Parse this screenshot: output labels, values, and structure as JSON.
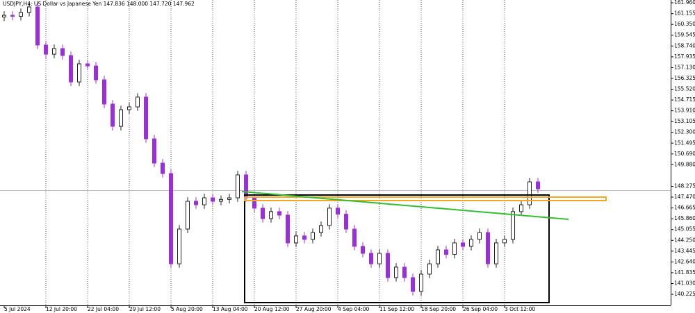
{
  "chart_data": {
    "type": "candlestick",
    "title": "USDJPY,H4:  US Dollar vs Japanese Yen  147.836 148.000 147.720 147.962",
    "categories": [
      "5 Jul 2024",
      null,
      null,
      null,
      null,
      "12 Jul 20:00",
      null,
      null,
      null,
      null,
      "22 Jul 04:00",
      null,
      null,
      null,
      null,
      "29 Jul 12:00",
      null,
      null,
      null,
      null,
      "5 Aug 20:00",
      null,
      null,
      null,
      null,
      "13 Aug 04:00",
      null,
      null,
      null,
      null,
      "20 Aug 12:00",
      null,
      null,
      null,
      null,
      "27 Aug 20:00",
      null,
      null,
      null,
      null,
      "4 Sep 04:00",
      null,
      null,
      null,
      null,
      "11 Sep 12:00",
      null,
      null,
      null,
      null,
      "18 Sep 20:00",
      null,
      null,
      null,
      null,
      "26 Sep 04:00",
      null,
      null,
      null,
      null,
      "3 Oct 12:00",
      null,
      null,
      null,
      null
    ],
    "open": [
      160.9,
      161.03,
      160.95,
      161.24,
      161.65,
      158.81,
      158.13,
      158.55,
      158.03,
      156.06,
      157.41,
      157.25,
      156.22,
      154.41,
      152.75,
      153.99,
      154.2,
      154.93,
      151.82,
      150.01,
      149.23,
      142.5,
      145.09,
      147.16,
      146.9,
      147.42,
      147.16,
      147.3,
      147.42,
      149.13,
      147.42,
      146.65,
      145.87,
      146.39,
      146.13,
      144.06,
      144.58,
      144.32,
      144.83,
      145.35,
      146.65,
      146.2,
      145.09,
      143.8,
      143.28,
      142.5,
      143.28,
      141.47,
      142.25,
      141.47,
      140.44,
      141.73,
      142.5,
      143.54,
      143.2,
      144.06,
      143.8,
      144.32,
      144.83,
      142.5,
      144.06,
      144.32,
      146.39,
      146.9,
      148.61
    ],
    "high": [
      161.33,
      161.33,
      161.54,
      161.95,
      161.95,
      159.11,
      158.85,
      158.85,
      158.33,
      157.71,
      157.71,
      157.55,
      156.52,
      154.71,
      154.29,
      154.5,
      155.23,
      155.23,
      152.12,
      150.31,
      149.53,
      145.39,
      147.46,
      147.46,
      147.72,
      147.72,
      147.6,
      147.72,
      149.43,
      149.43,
      147.72,
      146.95,
      146.69,
      146.69,
      146.43,
      144.88,
      144.88,
      145.13,
      145.65,
      146.95,
      146.95,
      146.5,
      145.39,
      144.1,
      143.58,
      143.58,
      143.58,
      142.55,
      142.55,
      141.77,
      142.03,
      142.8,
      143.84,
      143.84,
      144.36,
      144.36,
      144.62,
      145.13,
      145.13,
      144.36,
      144.62,
      146.69,
      147.2,
      148.91,
      148.91
    ],
    "low": [
      160.6,
      160.65,
      160.65,
      160.94,
      158.51,
      157.83,
      157.83,
      157.73,
      155.76,
      155.76,
      156.95,
      155.92,
      154.11,
      152.45,
      152.45,
      153.69,
      153.9,
      151.52,
      149.71,
      148.93,
      142.2,
      142.2,
      144.79,
      146.6,
      146.6,
      146.86,
      146.86,
      147.0,
      147.12,
      147.12,
      146.35,
      145.57,
      145.57,
      145.83,
      143.76,
      143.76,
      144.02,
      144.02,
      144.53,
      145.05,
      145.9,
      144.79,
      143.5,
      142.98,
      142.2,
      142.2,
      141.17,
      141.17,
      141.17,
      140.14,
      140.14,
      141.43,
      142.2,
      142.9,
      142.9,
      143.5,
      143.5,
      144.02,
      142.2,
      142.2,
      143.76,
      144.02,
      146.09,
      146.6,
      147.79
    ],
    "close": [
      161.03,
      160.95,
      161.24,
      161.65,
      158.81,
      158.13,
      158.55,
      158.03,
      156.06,
      157.41,
      157.25,
      156.22,
      154.41,
      152.75,
      153.99,
      154.2,
      154.93,
      151.82,
      150.01,
      149.23,
      142.5,
      145.09,
      147.16,
      146.9,
      147.42,
      147.16,
      147.3,
      147.42,
      149.13,
      147.42,
      146.65,
      145.87,
      146.39,
      146.13,
      144.06,
      144.58,
      144.32,
      144.83,
      145.35,
      146.65,
      146.2,
      145.09,
      143.8,
      143.28,
      142.5,
      143.28,
      141.47,
      142.25,
      141.47,
      140.44,
      141.73,
      142.5,
      143.54,
      143.2,
      144.06,
      143.8,
      144.32,
      144.83,
      142.5,
      144.06,
      144.32,
      146.39,
      146.9,
      148.61,
      148.09
    ],
    "up_color": "#222222",
    "down_color": "#9b30d9",
    "ylim": [
      139.4,
      162.17
    ],
    "yticks": [
      {
        "value": 161.96,
        "label": "161.960"
      },
      161.155,
      {
        "value": 160.35,
        "label": "160.350"
      },
      159.545,
      {
        "value": 158.74,
        "label": "158.740"
      },
      157.935,
      {
        "value": 157.13,
        "label": "157.130"
      },
      156.325,
      {
        "value": 155.52,
        "label": "155.520"
      },
      154.715,
      {
        "value": 153.91,
        "label": "153.910"
      },
      153.105,
      {
        "value": 152.3,
        "label": "152.300"
      },
      151.495,
      {
        "value": 150.69,
        "label": "150.690"
      },
      {
        "value": 149.88,
        "label": "149.880"
      },
      148.275,
      {
        "value": 147.47,
        "label": "147.470"
      },
      146.665,
      {
        "value": 145.86,
        "label": "145.860"
      },
      145.055,
      {
        "value": 144.25,
        "label": "144.250"
      },
      143.445,
      {
        "value": 142.64,
        "label": "142.640"
      },
      141.835,
      {
        "value": 141.03,
        "label": "141.030"
      },
      140.225
    ],
    "grid": true
  }
}
